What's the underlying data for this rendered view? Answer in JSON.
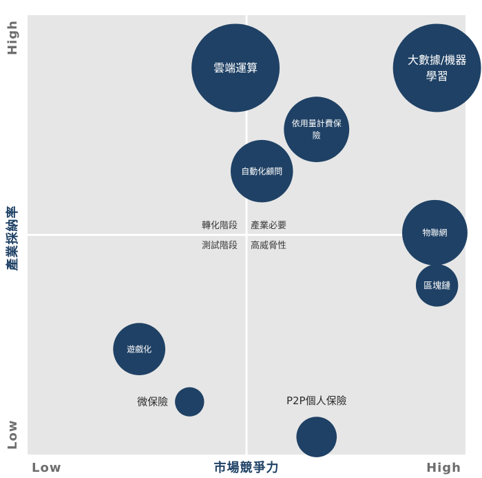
{
  "chart_data": {
    "type": "bubble",
    "xlabel": "市場競爭力",
    "ylabel": "產業採納率",
    "x_low_label": "Low",
    "x_high_label": "High",
    "y_low_label": "Low",
    "y_high_label": "High",
    "xlim": [
      0,
      10
    ],
    "ylim": [
      0,
      10
    ],
    "quadrant_divider": {
      "x": 5,
      "y": 5
    },
    "quadrant_labels": {
      "top_left": "轉化階段",
      "top_right": "產業必要",
      "bottom_left": "測試階段",
      "bottom_right": "高威脅性"
    },
    "bubbles": [
      {
        "label": "雲端運算",
        "x": 4.75,
        "y": 8.8,
        "size": 10,
        "label_pos": "inside"
      },
      {
        "label": "大數據/機器學習",
        "x": 9.35,
        "y": 8.8,
        "size": 10,
        "label_pos": "inside"
      },
      {
        "label": "依用量計費保險",
        "x": 6.6,
        "y": 7.4,
        "size": 5.5,
        "label_pos": "inside"
      },
      {
        "label": "自動化顧問",
        "x": 5.35,
        "y": 6.45,
        "size": 5,
        "label_pos": "inside"
      },
      {
        "label": "物聯網",
        "x": 9.3,
        "y": 5.05,
        "size": 5.5,
        "label_pos": "inside"
      },
      {
        "label": "區塊鏈",
        "x": 9.35,
        "y": 3.85,
        "size": 2.3,
        "label_pos": "inside"
      },
      {
        "label": "遊戲化",
        "x": 2.55,
        "y": 2.4,
        "size": 3.5,
        "label_pos": "inside"
      },
      {
        "label": "微保險",
        "x": 3.7,
        "y": 1.2,
        "size": 1.1,
        "label_pos": "left"
      },
      {
        "label": "P2P個人保險",
        "x": 6.6,
        "y": 0.4,
        "size": 2.1,
        "label_pos": "above"
      }
    ],
    "colors": {
      "plot_bg": "#e6e6e6",
      "bubble": "#1f4165",
      "divider": "#ffffff"
    }
  }
}
